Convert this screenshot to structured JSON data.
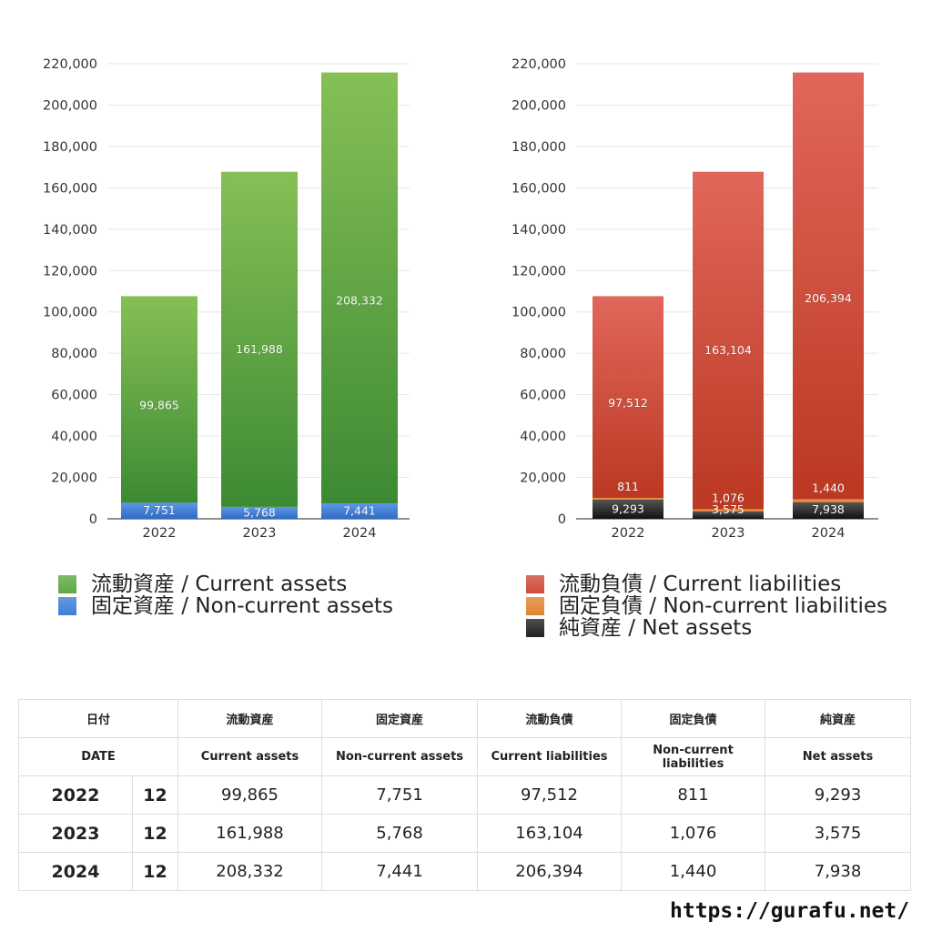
{
  "chart_data": [
    {
      "type": "bar",
      "stacked": true,
      "categories": [
        "2022",
        "2023",
        "2024"
      ],
      "ylim": [
        0,
        220000
      ],
      "yticks": [
        "0",
        "20,000",
        "40,000",
        "60,000",
        "80,000",
        "100,000",
        "120,000",
        "140,000",
        "160,000",
        "180,000",
        "200,000",
        "220,000"
      ],
      "grid": true,
      "series": [
        {
          "name": "固定資産 / Non-current assets",
          "values": [
            7751,
            5768,
            7441
          ],
          "labels": [
            "7,751",
            "5,768",
            "7,441"
          ],
          "color": "#3f7fd8"
        },
        {
          "name": "流動資産 / Current assets",
          "values": [
            99865,
            161988,
            208332
          ],
          "labels": [
            "99,865",
            "161,988",
            "208,332"
          ],
          "color": "#5fa845"
        }
      ]
    },
    {
      "type": "bar",
      "stacked": true,
      "categories": [
        "2022",
        "2023",
        "2024"
      ],
      "ylim": [
        0,
        220000
      ],
      "yticks": [
        "0",
        "20,000",
        "40,000",
        "60,000",
        "80,000",
        "100,000",
        "120,000",
        "140,000",
        "160,000",
        "180,000",
        "200,000",
        "220,000"
      ],
      "grid": true,
      "series": [
        {
          "name": "純資産 / Net assets",
          "values": [
            9293,
            3575,
            7938
          ],
          "labels": [
            "9,293",
            "3,575",
            "7,938"
          ],
          "color": "#222222"
        },
        {
          "name": "固定負債 / Non-current liabilities",
          "values": [
            811,
            1076,
            1440
          ],
          "labels": [
            "811",
            "1,076",
            "1,440"
          ],
          "color": "#e0852f"
        },
        {
          "name": "流動負債 / Current liabilities",
          "values": [
            97512,
            163104,
            206394
          ],
          "labels": [
            "97,512",
            "163,104",
            "206,394"
          ],
          "color": "#cf4b3c"
        }
      ]
    }
  ],
  "legend_left": [
    {
      "label": "流動資産 / Current assets",
      "color": "#5fa845"
    },
    {
      "label": "固定資産 / Non-current assets",
      "color": "#3f7fd8"
    }
  ],
  "legend_right": [
    {
      "label": "流動負債 / Current liabilities",
      "color": "#cf4b3c"
    },
    {
      "label": "固定負債 / Non-current liabilities",
      "color": "#e0852f"
    },
    {
      "label": "純資産 / Net assets",
      "color": "#222222"
    }
  ],
  "table": {
    "header_jp": [
      "日付",
      "流動資産",
      "固定資産",
      "流動負債",
      "固定負債",
      "純資産"
    ],
    "header_en": [
      "DATE",
      "Current assets",
      "Non-current assets",
      "Current liabilities",
      "Non-current liabilities",
      "Net assets"
    ],
    "rows": [
      {
        "year": "2022",
        "month": "12",
        "values": [
          "99,865",
          "7,751",
          "97,512",
          "811",
          "9,293"
        ]
      },
      {
        "year": "2023",
        "month": "12",
        "values": [
          "161,988",
          "5,768",
          "163,104",
          "1,076",
          "3,575"
        ]
      },
      {
        "year": "2024",
        "month": "12",
        "values": [
          "208,332",
          "7,441",
          "206,394",
          "1,440",
          "7,938"
        ]
      }
    ]
  },
  "site": "https://gurafu.net/"
}
